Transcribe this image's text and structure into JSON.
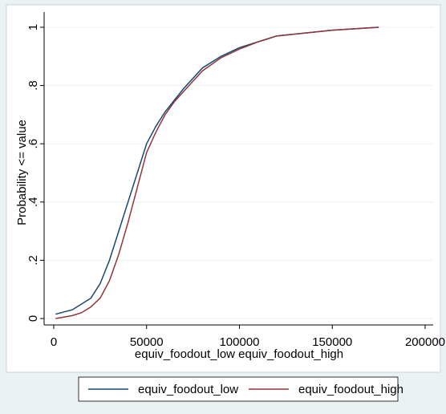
{
  "chart_data": {
    "type": "line",
    "xlabel": "equiv_foodout_low equiv_foodout_high",
    "ylabel": "Probability <= value",
    "x": [
      1000,
      10000,
      15000,
      20000,
      25000,
      30000,
      35000,
      40000,
      45000,
      50000,
      55000,
      60000,
      65000,
      70000,
      80000,
      90000,
      100000,
      110000,
      120000,
      135000,
      150000,
      175000
    ],
    "series": [
      {
        "name": "equiv_foodout_low",
        "color": "#1a476f",
        "values": [
          0.015,
          0.03,
          0.05,
          0.07,
          0.12,
          0.2,
          0.3,
          0.4,
          0.5,
          0.6,
          0.66,
          0.71,
          0.75,
          0.79,
          0.86,
          0.9,
          0.93,
          0.95,
          0.97,
          0.98,
          0.99,
          1.0
        ]
      },
      {
        "name": "equiv_foodout_high",
        "color": "#90353b",
        "values": [
          0.0,
          0.01,
          0.02,
          0.04,
          0.07,
          0.13,
          0.22,
          0.33,
          0.45,
          0.57,
          0.64,
          0.7,
          0.745,
          0.78,
          0.85,
          0.895,
          0.925,
          0.95,
          0.97,
          0.98,
          0.99,
          1.0
        ]
      }
    ],
    "xlim": [
      0,
      200000
    ],
    "xticks": [
      0,
      50000,
      100000,
      150000,
      200000
    ],
    "ylim": [
      0,
      1
    ],
    "yticks": [
      0,
      {
        "value": 0.2,
        "label": ".2"
      },
      {
        "value": 0.4,
        "label": ".4"
      },
      {
        "value": 0.6,
        "label": ".6"
      },
      {
        "value": 0.8,
        "label": ".8"
      },
      1
    ],
    "grid": true,
    "legend": "bottom"
  }
}
